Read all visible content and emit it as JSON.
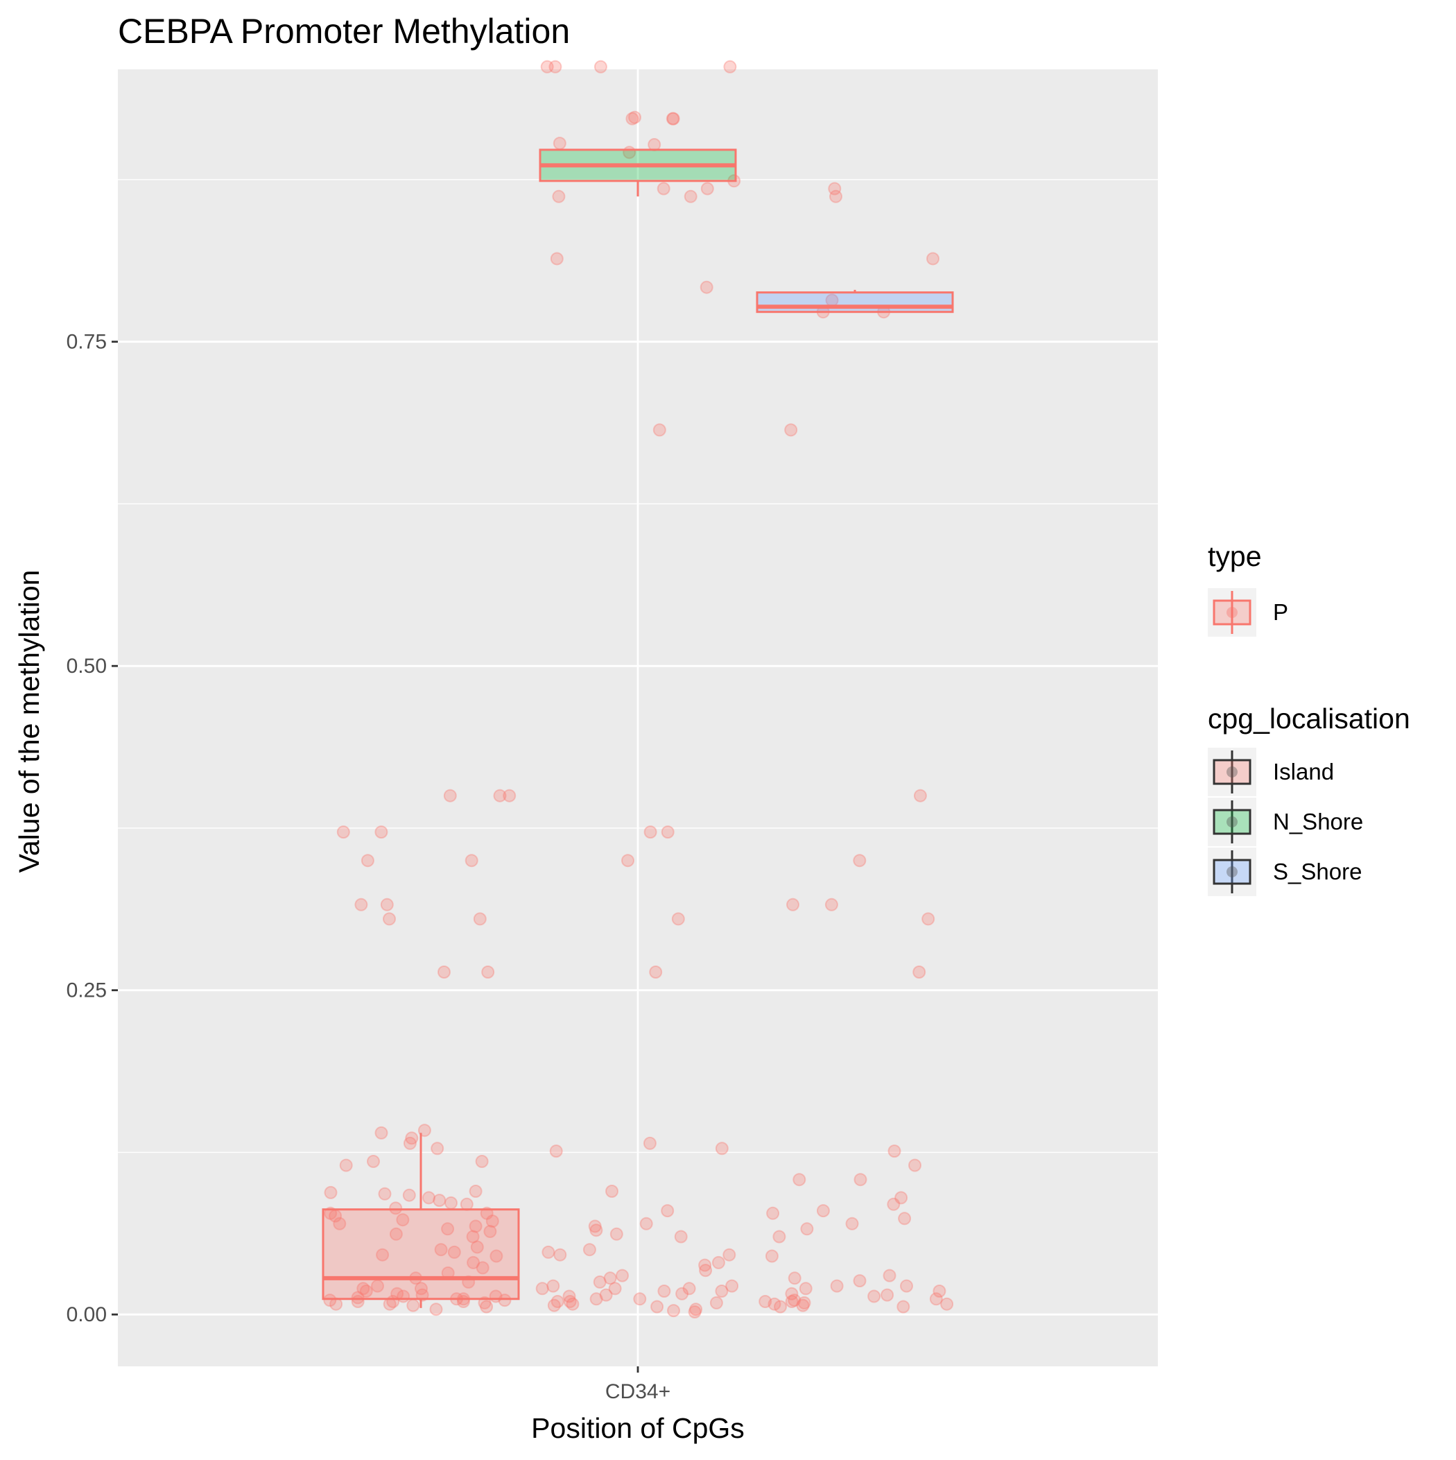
{
  "chart_data": {
    "type": "boxplot",
    "title": "CEBPA Promoter Methylation",
    "xlabel": "Position of CpGs",
    "ylabel": "Value of the methylation",
    "categories": [
      "CD34+"
    ],
    "ylim": [
      -0.04,
      0.96
    ],
    "yticks": [
      0.0,
      0.25,
      0.5,
      0.75
    ],
    "ytick_labels": [
      "0.00",
      "0.25",
      "0.50",
      "0.75"
    ],
    "grid": true,
    "legend_position": "right",
    "colors": {
      "panel": "#ebebeb",
      "grid": "#ffffff",
      "outline": "#f8766d",
      "Island": "#f8766d",
      "N_Shore": "#00ba38",
      "S_Shore": "#619cff",
      "legend_key_bg": "#f2f2f2",
      "legend_dark": "#333333"
    },
    "legends": [
      {
        "title": "type",
        "items": [
          {
            "label": "P",
            "color": "#f8766d"
          }
        ]
      },
      {
        "title": "cpg_localisation",
        "items": [
          {
            "label": "Island",
            "color": "#f8766d"
          },
          {
            "label": "N_Shore",
            "color": "#00ba38"
          },
          {
            "label": "S_Shore",
            "color": "#619cff"
          }
        ]
      }
    ],
    "boxes": [
      {
        "group": "Island",
        "category": "CD34+",
        "min": 0.005,
        "q1": 0.012,
        "median": 0.028,
        "q3": 0.081,
        "max": 0.14
      },
      {
        "group": "N_Shore",
        "category": "CD34+",
        "min": 0.862,
        "q1": 0.874,
        "median": 0.886,
        "q3": 0.898,
        "max": 0.898
      },
      {
        "group": "S_Shore",
        "category": "CD34+",
        "min": 0.773,
        "q1": 0.773,
        "median": 0.777,
        "q3": 0.788,
        "max": 0.79
      }
    ],
    "points": [
      {
        "group": "Island",
        "values": [
          0.4,
          0.4,
          0.372,
          0.372,
          0.35,
          0.35,
          0.316,
          0.316,
          0.305,
          0.305,
          0.264,
          0.264,
          0.4,
          0.142,
          0.14,
          0.136,
          0.132,
          0.128,
          0.118,
          0.118,
          0.115,
          0.095,
          0.094,
          0.093,
          0.092,
          0.09,
          0.088,
          0.086,
          0.085,
          0.082,
          0.078,
          0.078,
          0.076,
          0.073,
          0.072,
          0.07,
          0.068,
          0.066,
          0.064,
          0.062,
          0.06,
          0.052,
          0.05,
          0.048,
          0.046,
          0.045,
          0.04,
          0.036,
          0.032,
          0.028,
          0.025,
          0.022,
          0.02,
          0.02,
          0.018,
          0.016,
          0.015,
          0.014,
          0.014,
          0.013,
          0.012,
          0.012,
          0.011,
          0.011,
          0.01,
          0.01,
          0.01,
          0.009,
          0.008,
          0.008,
          0.007,
          0.006,
          0.004
        ]
      },
      {
        "group": "N_Shore",
        "values": [
          0.962,
          0.962,
          0.962,
          0.962,
          0.923,
          0.922,
          0.922,
          0.922,
          0.903,
          0.902,
          0.896,
          0.874,
          0.862,
          0.868,
          0.862,
          0.868,
          0.814,
          0.792,
          0.682,
          0.372,
          0.372,
          0.35,
          0.305,
          0.264,
          0.132,
          0.128,
          0.126,
          0.095,
          0.08,
          0.07,
          0.068,
          0.065,
          0.062,
          0.06,
          0.05,
          0.048,
          0.046,
          0.046,
          0.04,
          0.038,
          0.034,
          0.03,
          0.028,
          0.025,
          0.022,
          0.022,
          0.02,
          0.02,
          0.02,
          0.018,
          0.018,
          0.016,
          0.015,
          0.014,
          0.012,
          0.012,
          0.01,
          0.01,
          0.009,
          0.008,
          0.007,
          0.006,
          0.004,
          0.003,
          0.002
        ]
      },
      {
        "group": "S_Shore",
        "values": [
          0.868,
          0.862,
          0.814,
          0.782,
          0.773,
          0.773,
          0.682,
          0.4,
          0.35,
          0.316,
          0.316,
          0.305,
          0.264,
          0.126,
          0.115,
          0.104,
          0.104,
          0.09,
          0.085,
          0.08,
          0.078,
          0.074,
          0.07,
          0.066,
          0.06,
          0.045,
          0.03,
          0.028,
          0.026,
          0.022,
          0.022,
          0.02,
          0.018,
          0.016,
          0.015,
          0.014,
          0.012,
          0.011,
          0.01,
          0.01,
          0.009,
          0.008,
          0.008,
          0.007,
          0.006,
          0.006
        ]
      }
    ]
  }
}
